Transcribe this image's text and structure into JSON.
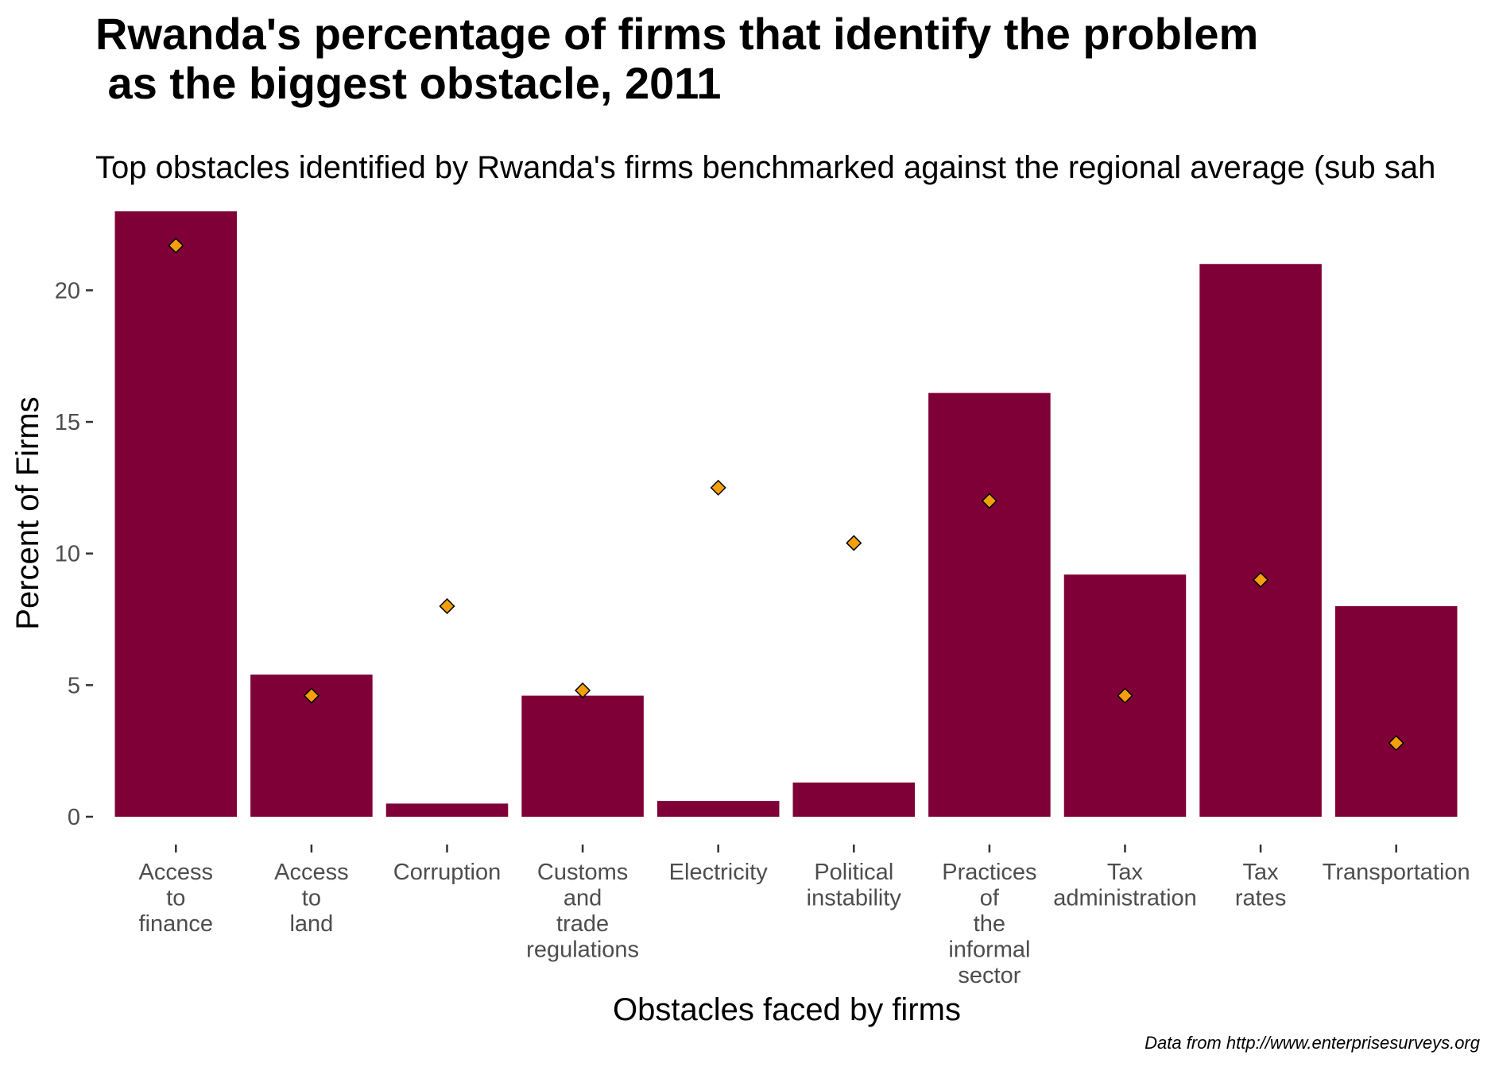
{
  "chart_data": {
    "type": "bar",
    "title_lines": [
      "Rwanda's percentage of firms that identify the problem",
      " as the biggest obstacle, 2011"
    ],
    "subtitle": "Top obstacles identified by Rwanda's firms benchmarked against the regional average (sub sah",
    "xlabel": "Obstacles faced by firms",
    "ylabel": "Percent of Firms",
    "caption": "Data from http://www.enterprisesurveys.org",
    "ylim": [
      0,
      23
    ],
    "yticks": [
      0,
      5,
      10,
      15,
      20
    ],
    "grid": false,
    "categories": [
      [
        "Access",
        "to",
        "finance"
      ],
      [
        "Access",
        "to",
        "land"
      ],
      [
        "Corruption"
      ],
      [
        "Customs",
        "and",
        "trade",
        "regulations"
      ],
      [
        "Electricity"
      ],
      [
        "Political",
        "instability"
      ],
      [
        "Practices",
        "of",
        "the",
        "informal",
        "sector"
      ],
      [
        "Tax",
        "administration"
      ],
      [
        "Tax",
        "rates"
      ],
      [
        "Transportation"
      ]
    ],
    "series": [
      {
        "type": "bar",
        "values": [
          23.0,
          5.4,
          0.5,
          4.6,
          0.6,
          1.3,
          16.1,
          9.2,
          21.0,
          8.0
        ],
        "color": "#7f0037"
      },
      {
        "type": "point",
        "marker": "diamond",
        "values": [
          21.7,
          4.6,
          8.0,
          4.8,
          12.5,
          10.4,
          12.0,
          4.6,
          9.0,
          2.8
        ],
        "color": "#f5a00a",
        "stroke": "#000000"
      }
    ]
  }
}
